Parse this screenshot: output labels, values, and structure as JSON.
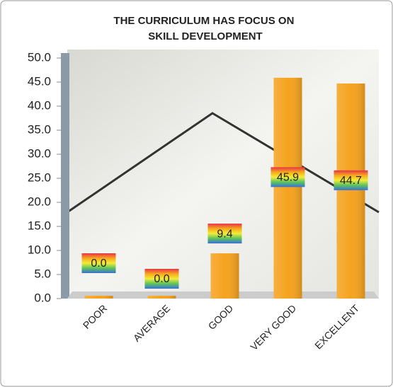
{
  "chart_data": {
    "type": "bar",
    "title": "THE CURRICULUM HAS FOCUS ON SKILL DEVELOPMENT",
    "categories": [
      "POOR",
      "AVERAGE",
      "GOOD",
      "VERY GOOD",
      "EXCELLENT"
    ],
    "values": [
      0.0,
      0.0,
      9.4,
      45.9,
      44.7
    ],
    "value_labels": [
      "0.0",
      "0.0",
      "9.4",
      "45.9",
      "44.7"
    ],
    "color": "#f5a31f",
    "ylim": [
      0,
      50
    ],
    "yticks": [
      {
        "value": 0,
        "label": "0.0"
      },
      {
        "value": 5,
        "label": "5.0"
      },
      {
        "value": 10,
        "label": "10.0"
      },
      {
        "value": 15,
        "label": "15.0"
      },
      {
        "value": 20,
        "label": "20.0"
      },
      {
        "value": 25,
        "label": "25.0"
      },
      {
        "value": 30,
        "label": "30.0"
      },
      {
        "value": 35,
        "label": "35.0"
      },
      {
        "value": 40,
        "label": "40.0"
      },
      {
        "value": 45,
        "label": "45.0"
      },
      {
        "value": 50,
        "label": "50.0"
      }
    ],
    "grid": false
  }
}
